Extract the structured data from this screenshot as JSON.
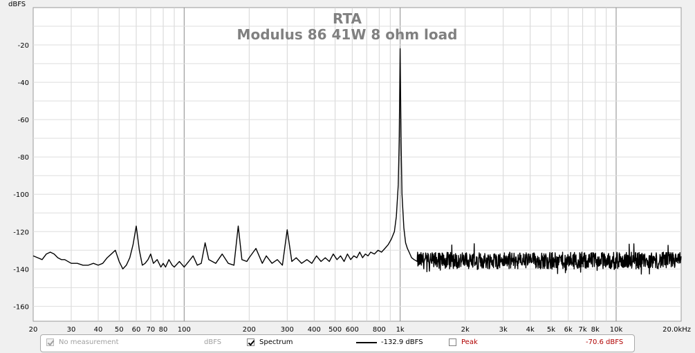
{
  "chart_data": {
    "type": "line",
    "title": "RTA",
    "subtitle": "Modulus 86 41W 8 ohm load",
    "ylabel": "dBFS",
    "xlabel": "",
    "x_scale": "log",
    "xlim": [
      20,
      20000
    ],
    "ylim": [
      -168,
      0
    ],
    "grid": true,
    "y_ticks": [
      -20,
      -40,
      -60,
      -80,
      -100,
      -120,
      -140,
      -160
    ],
    "x_ticks": [
      {
        "v": 20,
        "label": "20"
      },
      {
        "v": 30,
        "label": "30"
      },
      {
        "v": 40,
        "label": "40"
      },
      {
        "v": 50,
        "label": "50"
      },
      {
        "v": 60,
        "label": "60"
      },
      {
        "v": 70,
        "label": "70"
      },
      {
        "v": 80,
        "label": "80"
      },
      {
        "v": 100,
        "label": "100"
      },
      {
        "v": 200,
        "label": "200"
      },
      {
        "v": 300,
        "label": "300"
      },
      {
        "v": 400,
        "label": "400"
      },
      {
        "v": 500,
        "label": "500"
      },
      {
        "v": 600,
        "label": "600"
      },
      {
        "v": 800,
        "label": "800"
      },
      {
        "v": 1000,
        "label": "1k"
      },
      {
        "v": 2000,
        "label": "2k"
      },
      {
        "v": 3000,
        "label": "3k"
      },
      {
        "v": 4000,
        "label": "4k"
      },
      {
        "v": 5000,
        "label": "5k"
      },
      {
        "v": 6000,
        "label": "6k"
      },
      {
        "v": 7000,
        "label": "7k"
      },
      {
        "v": 8000,
        "label": "8k"
      },
      {
        "v": 10000,
        "label": "10k"
      },
      {
        "v": 20000,
        "label": "20.0kHz"
      }
    ],
    "series": [
      {
        "name": "Spectrum",
        "color": "#000000",
        "x": [
          20,
          21,
          22,
          23,
          24,
          25,
          26,
          27,
          28,
          30,
          32,
          34,
          36,
          38,
          40,
          42,
          44,
          46,
          48,
          50,
          52,
          54,
          56,
          58,
          60,
          62,
          64,
          66,
          68,
          70,
          72,
          75,
          78,
          80,
          82,
          85,
          88,
          90,
          95,
          100,
          105,
          110,
          115,
          120,
          125,
          130,
          140,
          150,
          160,
          170,
          178,
          185,
          195,
          200,
          215,
          230,
          240,
          255,
          270,
          285,
          300,
          315,
          330,
          350,
          370,
          390,
          410,
          430,
          450,
          470,
          490,
          510,
          530,
          550,
          570,
          590,
          610,
          630,
          650,
          670,
          690,
          710,
          730,
          760,
          790,
          820,
          850,
          880,
          910,
          940,
          960,
          980,
          990,
          1000,
          1010,
          1020,
          1040,
          1060,
          1080,
          1100,
          1130,
          1160,
          1200
        ],
        "y": [
          -133,
          -134,
          -135,
          -132,
          -131,
          -132,
          -134,
          -135,
          -135,
          -137,
          -137,
          -138,
          -138,
          -137,
          -138,
          -137,
          -134,
          -132,
          -130,
          -136,
          -140,
          -138,
          -134,
          -127,
          -117,
          -130,
          -138,
          -137,
          -135,
          -132,
          -137,
          -135,
          -139,
          -137,
          -139,
          -135,
          -138,
          -139,
          -136,
          -139,
          -136,
          -133,
          -138,
          -137,
          -126,
          -135,
          -137,
          -132,
          -137,
          -138,
          -117,
          -135,
          -136,
          -134,
          -129,
          -137,
          -133,
          -137,
          -135,
          -138,
          -119,
          -136,
          -134,
          -137,
          -135,
          -137,
          -133,
          -136,
          -134,
          -136,
          -132,
          -135,
          -133,
          -136,
          -132,
          -135,
          -133,
          -134,
          -131,
          -134,
          -132,
          -133,
          -131,
          -132,
          -130,
          -131,
          -129,
          -127,
          -124,
          -120,
          -112,
          -95,
          -70,
          -22,
          -72,
          -100,
          -118,
          -126,
          -129,
          -131,
          -134,
          -135,
          -136
        ]
      }
    ],
    "noise_floor_above_1200": {
      "x_range": [
        1200,
        20000
      ],
      "y_range": [
        -140,
        -131
      ],
      "peak_min": -143,
      "peak_max": -128
    }
  },
  "legend": {
    "no_measurement": "No measurement",
    "units": "dBFS",
    "spectrum": "Spectrum",
    "spectrum_value": "-132.9 dBFS",
    "peak": "Peak",
    "peak_value": "-70.6 dBFS"
  }
}
